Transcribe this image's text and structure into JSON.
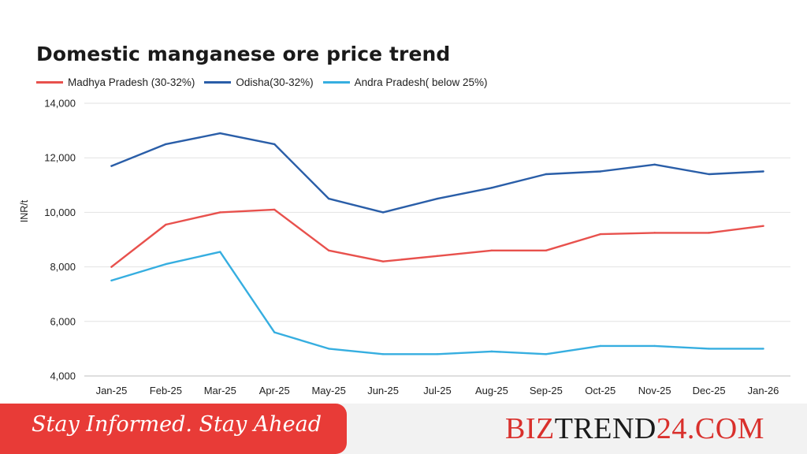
{
  "chart_data": {
    "type": "line",
    "title": "Domestic manganese ore price trend",
    "ylabel": "INR/t",
    "xlabel": "",
    "ylim": [
      4000,
      14000
    ],
    "yticks": [
      "4,000",
      "6,000",
      "8,000",
      "10,000",
      "12,000",
      "14,000"
    ],
    "categories": [
      "Jan-25",
      "Feb-25",
      "Mar-25",
      "Apr-25",
      "May-25",
      "Jun-25",
      "Jul-25",
      "Aug-25",
      "Sep-25",
      "Oct-25",
      "Nov-25",
      "Dec-25",
      "Jan-26"
    ],
    "legend_position": "top-left",
    "grid": true,
    "series": [
      {
        "name": "Madhya Pradesh (30-32%)",
        "color": "#e8514d",
        "values": [
          8000,
          9550,
          10000,
          10100,
          8600,
          8200,
          8400,
          8600,
          8600,
          9200,
          9250,
          9250,
          9500
        ]
      },
      {
        "name": "Odisha(30-32%)",
        "color": "#2a5ea8",
        "values": [
          11700,
          12500,
          12900,
          12500,
          10500,
          10000,
          10500,
          10900,
          11400,
          11500,
          11750,
          11400,
          11500
        ]
      },
      {
        "name": "Andra Pradesh( below 25%)",
        "color": "#36aee0",
        "values": [
          7500,
          8100,
          8550,
          5600,
          5000,
          4800,
          4800,
          4900,
          4800,
          5100,
          5100,
          5000,
          5000
        ]
      }
    ]
  },
  "footer": {
    "tagline": "Stay Informed. Stay Ahead",
    "brand_part1": "BIZ",
    "brand_part2": "TREND",
    "brand_part3": "24.COM",
    "brand_color": "#d9302c",
    "tagline_bg": "#e83b37"
  }
}
